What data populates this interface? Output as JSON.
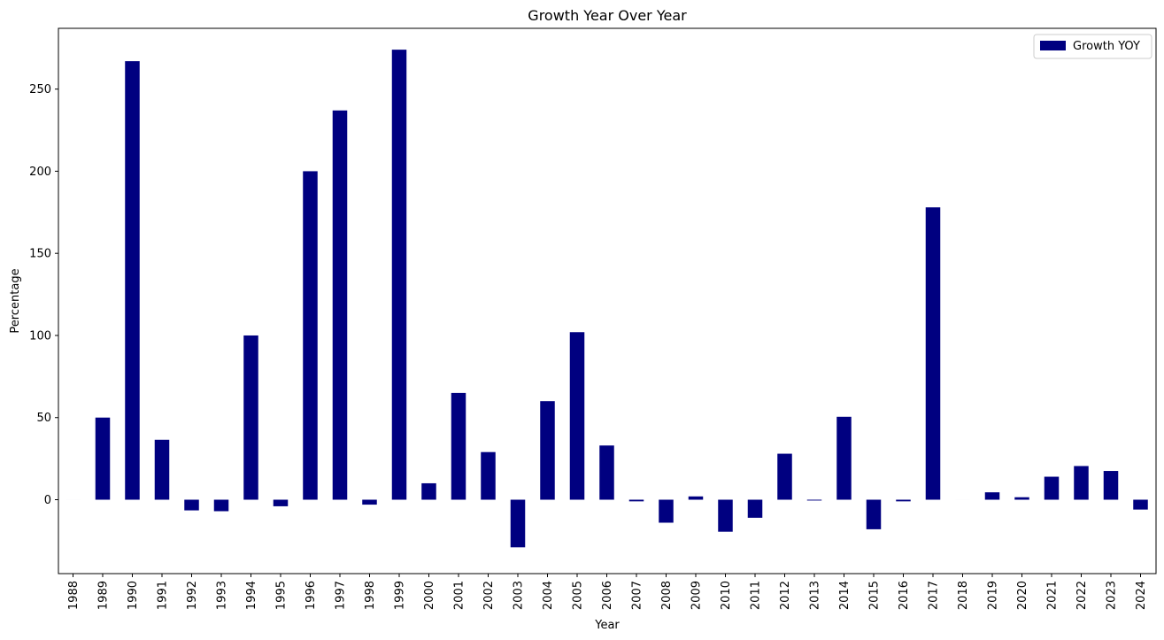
{
  "chart_data": {
    "type": "bar",
    "title": "Growth Year Over Year",
    "xlabel": "Year",
    "ylabel": "Percentage",
    "ylim": [
      -45,
      287
    ],
    "yticks": [
      0,
      50,
      100,
      150,
      200,
      250
    ],
    "grid": false,
    "legend": {
      "position": "top-right",
      "entries": [
        "Growth YOY"
      ]
    },
    "categories": [
      "1988",
      "1989",
      "1990",
      "1991",
      "1992",
      "1993",
      "1994",
      "1995",
      "1996",
      "1997",
      "1998",
      "1999",
      "2000",
      "2001",
      "2002",
      "2003",
      "2004",
      "2005",
      "2006",
      "2007",
      "2008",
      "2009",
      "2010",
      "2011",
      "2012",
      "2013",
      "2014",
      "2015",
      "2016",
      "2017",
      "2018",
      "2019",
      "2020",
      "2021",
      "2022",
      "2023",
      "2024"
    ],
    "series": [
      {
        "name": "Growth YOY",
        "color": "#000080",
        "values": [
          0,
          50,
          267,
          36.5,
          -6.5,
          -7,
          100,
          -4,
          200,
          237,
          -3,
          274,
          10,
          65,
          29,
          -29,
          60,
          102,
          33,
          -1,
          -14,
          2,
          -19.5,
          -11,
          28,
          -0.5,
          50.5,
          -18,
          -1,
          178,
          0,
          4.5,
          1.5,
          14,
          20.5,
          17.5,
          -6
        ]
      }
    ]
  }
}
